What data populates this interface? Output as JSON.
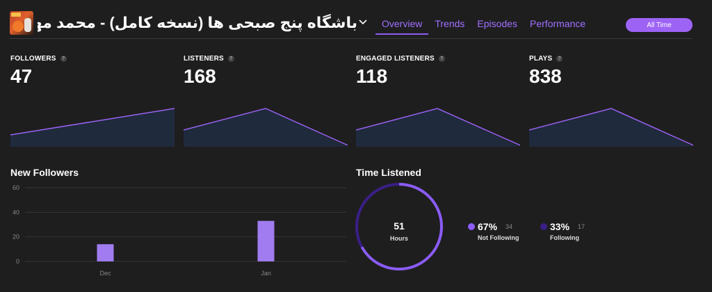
{
  "header": {
    "title": "باشگاه پنج صبحی ها (نسخه کامل) - محمد مهدی زارعی",
    "tabs": [
      {
        "label": "Overview",
        "active": true
      },
      {
        "label": "Trends",
        "active": false
      },
      {
        "label": "Episodes",
        "active": false
      },
      {
        "label": "Performance",
        "active": false
      }
    ],
    "range_button": "All Time"
  },
  "kpis": [
    {
      "label": "FOLLOWERS",
      "help": "?",
      "value": "47"
    },
    {
      "label": "LISTENERS",
      "help": "?",
      "value": "168"
    },
    {
      "label": "ENGAGED LISTENERS",
      "help": "?",
      "value": "118"
    },
    {
      "label": "PLAYS",
      "help": "?",
      "value": "838"
    }
  ],
  "new_followers": {
    "title": "New Followers",
    "chart_data": {
      "type": "bar",
      "categories": [
        "Dec",
        "Jan"
      ],
      "values": [
        14,
        33
      ],
      "ylim": [
        0,
        60
      ],
      "yticks": [
        0,
        20,
        40,
        60
      ],
      "grid": true
    }
  },
  "time_listened": {
    "title": "Time Listened",
    "value": "51",
    "unit": "Hours",
    "chart_data": {
      "type": "pie",
      "slices": [
        {
          "label": "Not Following",
          "percent": 67,
          "count": 34
        },
        {
          "label": "Following",
          "percent": 33,
          "count": 17
        }
      ]
    },
    "legend": [
      {
        "pct": "67%",
        "count": "34",
        "label": "Not Following",
        "color": "#8b5cf6"
      },
      {
        "pct": "33%",
        "count": "17",
        "label": "Following",
        "color": "#3a1f86"
      }
    ]
  },
  "colors": {
    "accent": "#8b5cf6",
    "spark_line": "#9a62f2",
    "spark_fill": "#1f2a3d",
    "donut_track": "#3a1f86"
  }
}
